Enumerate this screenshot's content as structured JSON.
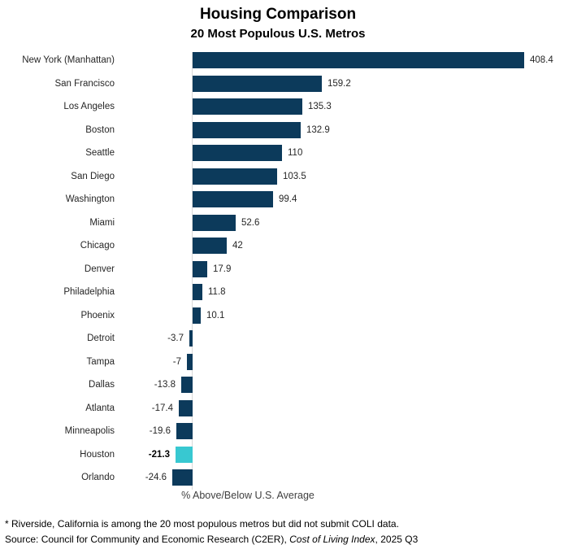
{
  "header": {
    "title": "Housing Comparison",
    "subtitle": "20 Most Populous U.S. Metros"
  },
  "chart_data": {
    "type": "bar",
    "orientation": "horizontal",
    "title": "Housing Comparison",
    "subtitle": "20 Most Populous U.S. Metros",
    "xlabel": "% Above/Below U.S. Average",
    "xlim": [
      -30,
      440
    ],
    "grid": false,
    "legend_position": "none",
    "categories": [
      "New York (Manhattan)",
      "San Francisco",
      "Los Angeles",
      "Boston",
      "Seattle",
      "San Diego",
      "Washington",
      "Miami",
      "Chicago",
      "Denver",
      "Philadelphia",
      "Phoenix",
      "Detroit",
      "Tampa",
      "Dallas",
      "Atlanta",
      "Minneapolis",
      "Houston",
      "Orlando"
    ],
    "values": [
      408.4,
      159.2,
      135.3,
      132.9,
      110,
      103.5,
      99.4,
      52.6,
      42,
      17.9,
      11.8,
      10.1,
      -3.7,
      -7,
      -13.8,
      -17.4,
      -19.6,
      -21.3,
      -24.6
    ],
    "value_labels": [
      "408.4",
      "159.2",
      "135.3",
      "132.9",
      "110",
      "103.5",
      "99.4",
      "52.6",
      "42",
      "17.9",
      "11.8",
      "10.1",
      "-3.7",
      "-7",
      "-13.8",
      "-17.4",
      "-19.6",
      "-21.3",
      "-24.6"
    ],
    "highlight_category": "Houston",
    "bar_color": "#0C3A5B",
    "highlight_color": "#38C8D1",
    "axis_line_color": "#D9D9D9"
  },
  "footer": {
    "note": "* Riverside, California is among the 20 most populous metros but did not submit COLI data.",
    "source_prefix": "Source: Council for Community and Economic Research (C2ER), ",
    "source_italic": "Cost of Living Index",
    "source_suffix": ", 2025 Q3"
  }
}
